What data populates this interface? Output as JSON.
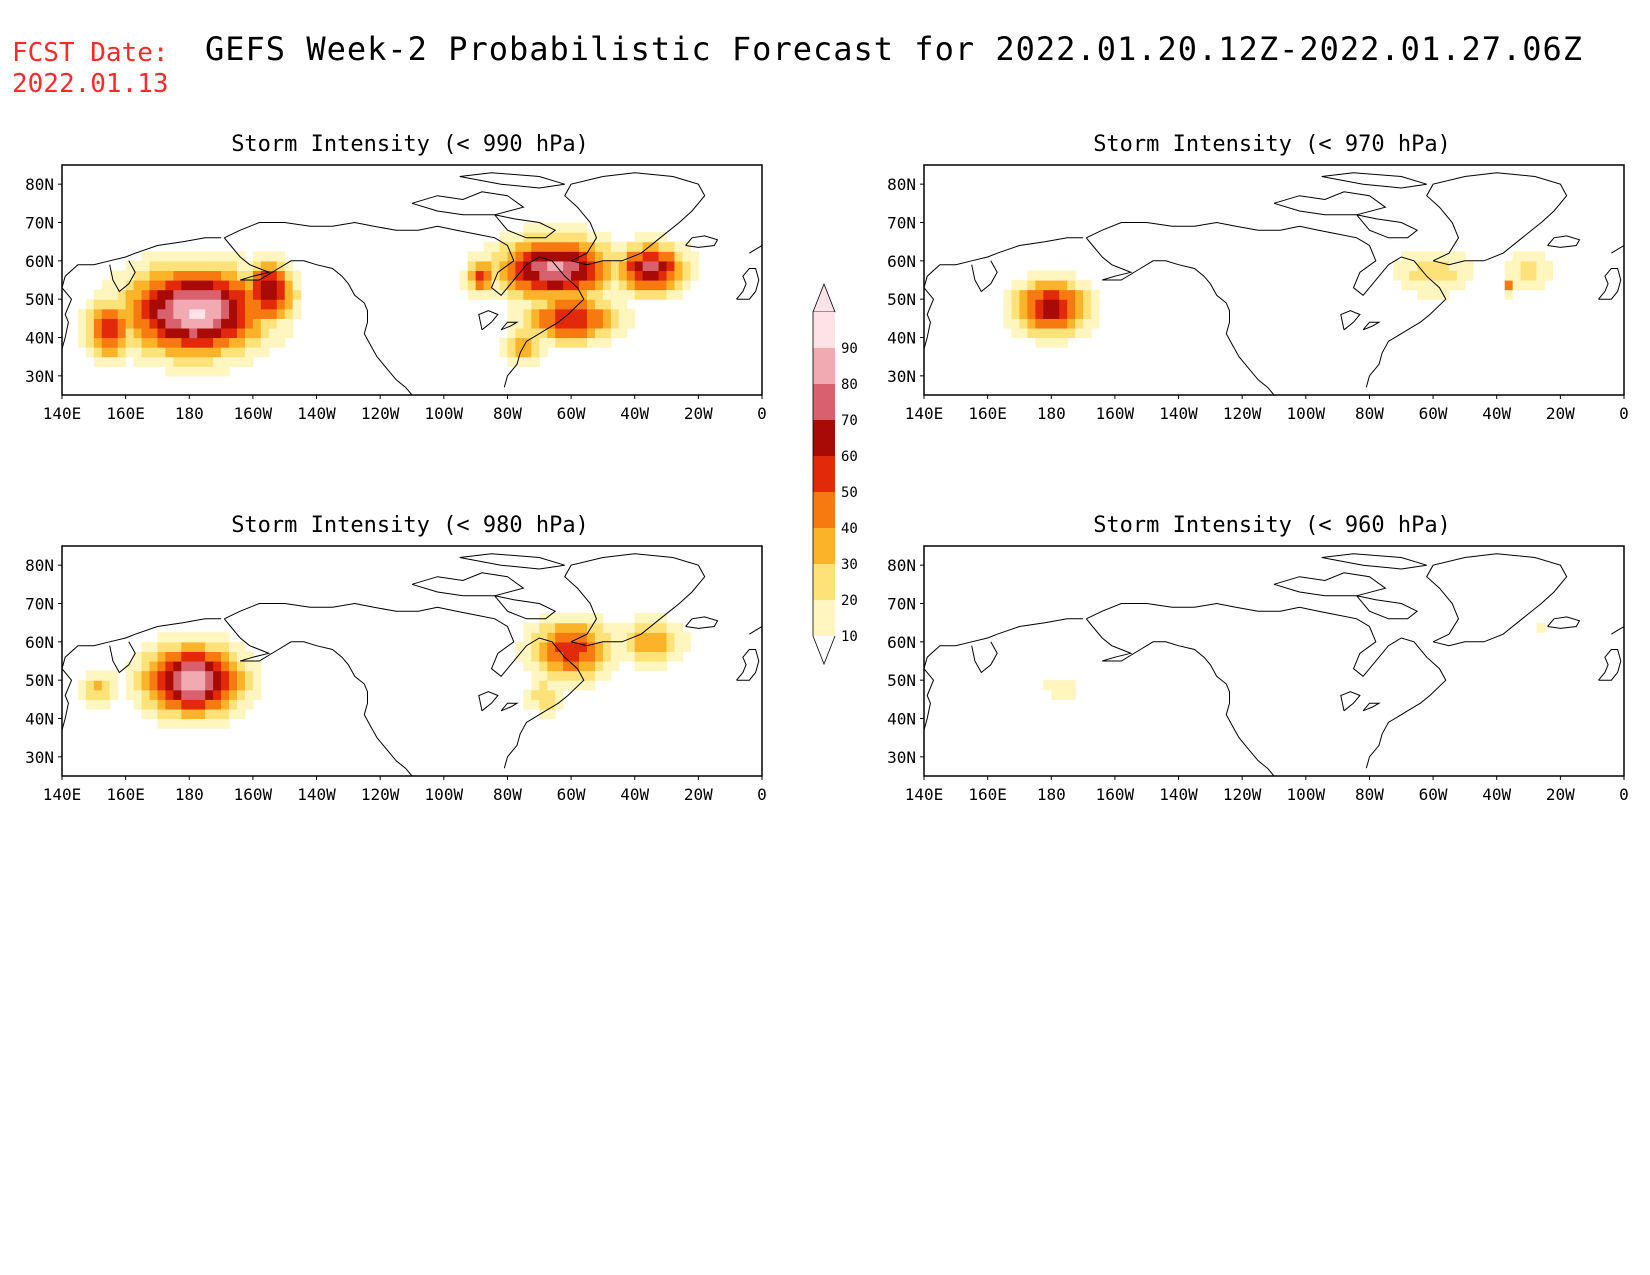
{
  "header": {
    "fcst_label": "FCST Date:",
    "fcst_date": "2022.01.13",
    "title": "GEFS Week-2 Probabilistic Forecast for 2022.01.20.12Z-2022.01.27.06Z"
  },
  "axes": {
    "lat_labels": [
      "80N",
      "70N",
      "60N",
      "50N",
      "40N",
      "30N"
    ],
    "lon_labels": [
      "140E",
      "160E",
      "180",
      "160W",
      "140W",
      "120W",
      "100W",
      "80W",
      "60W",
      "40W",
      "20W",
      "0"
    ]
  },
  "panels": [
    {
      "id": "p990",
      "title": "Storm Intensity (< 990 hPa)"
    },
    {
      "id": "p970",
      "title": "Storm Intensity (< 970 hPa)"
    },
    {
      "id": "p980",
      "title": "Storm Intensity (< 980 hPa)"
    },
    {
      "id": "p960",
      "title": "Storm Intensity (< 960 hPa)"
    }
  ],
  "colorbar": {
    "labels": [
      "10",
      "20",
      "30",
      "40",
      "50",
      "60",
      "70",
      "80",
      "90"
    ],
    "colors": [
      "#fff5be",
      "#fde27a",
      "#fbb42a",
      "#f77a10",
      "#e22a0a",
      "#a80a06",
      "#d7616c",
      "#f1a9b2",
      "#fde3e8"
    ]
  },
  "chart_data": {
    "type": "heatmap",
    "lat_range": [
      25,
      85
    ],
    "lon_range": [
      140,
      360
    ],
    "blobs": {
      "p990": [
        {
          "lon": 182,
          "lat": 47,
          "rlon": 27,
          "rlat": 14,
          "peak": 92
        },
        {
          "lon": 155,
          "lat": 42,
          "rlon": 10,
          "rlat": 10,
          "peak": 55
        },
        {
          "lon": 205,
          "lat": 52,
          "rlon": 10,
          "rlat": 10,
          "peak": 70
        },
        {
          "lon": 295,
          "lat": 58,
          "rlon": 22,
          "rlat": 10,
          "peak": 82
        },
        {
          "lon": 300,
          "lat": 45,
          "rlon": 18,
          "rlat": 8,
          "peak": 62
        },
        {
          "lon": 325,
          "lat": 58,
          "rlon": 14,
          "rlat": 8,
          "peak": 72
        },
        {
          "lon": 272,
          "lat": 56,
          "rlon": 6,
          "rlat": 6,
          "peak": 55
        },
        {
          "lon": 285,
          "lat": 38,
          "rlon": 8,
          "rlat": 6,
          "peak": 42
        }
      ],
      "p970": [
        {
          "lon": 180,
          "lat": 48,
          "rlon": 15,
          "rlat": 9,
          "peak": 66
        },
        {
          "lon": 300,
          "lat": 57,
          "rlon": 17,
          "rlat": 8,
          "peak": 26
        },
        {
          "lon": 330,
          "lat": 58,
          "rlon": 9,
          "rlat": 7,
          "peak": 26
        },
        {
          "lon": 324,
          "lat": 53,
          "rlon": 2,
          "rlat": 2,
          "peak": 55
        }
      ],
      "p980": [
        {
          "lon": 181,
          "lat": 50,
          "rlon": 19,
          "rlat": 11,
          "peak": 88
        },
        {
          "lon": 152,
          "lat": 48,
          "rlon": 8,
          "rlat": 6,
          "peak": 32
        },
        {
          "lon": 300,
          "lat": 58,
          "rlon": 16,
          "rlat": 10,
          "peak": 56
        },
        {
          "lon": 325,
          "lat": 60,
          "rlon": 13,
          "rlat": 7,
          "peak": 42
        },
        {
          "lon": 292,
          "lat": 46,
          "rlon": 8,
          "rlat": 6,
          "peak": 30
        }
      ],
      "p960": [
        {
          "lon": 183,
          "lat": 48,
          "rlon": 8,
          "rlat": 5,
          "peak": 18
        },
        {
          "lon": 333,
          "lat": 64,
          "rlon": 3,
          "rlat": 2,
          "peak": 16
        },
        {
          "lon": 316,
          "lat": 55,
          "rlon": 2,
          "rlat": 1.5,
          "peak": 14
        }
      ]
    }
  }
}
